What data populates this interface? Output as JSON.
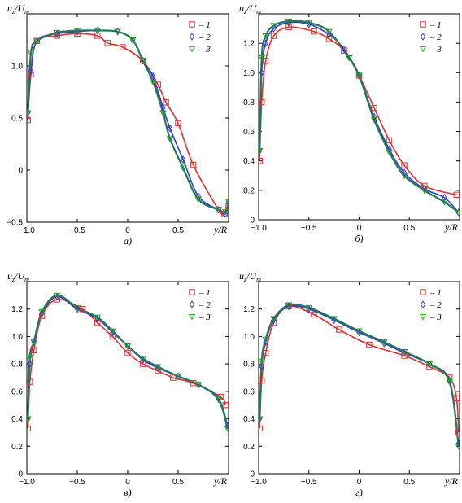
{
  "colors": {
    "series1": "#e03030",
    "series2": "#3a3ad0",
    "series3": "#22a022",
    "fit3": "#1f7a5c"
  },
  "chart_data": [
    {
      "type": "line",
      "subtitle": "а)",
      "ylabel": "u_z/U_m",
      "xlabel": "y/R",
      "xlim": [
        -1.0,
        1.0
      ],
      "ylim": [
        -0.5,
        1.5
      ],
      "xticks": [
        "-1.0",
        "-0.5",
        "0",
        "0.5"
      ],
      "yticks": [
        "-0.5",
        "0",
        "0.5",
        "1.0"
      ],
      "legend": [
        "– 1",
        "– 2",
        "– 3"
      ],
      "legend_position": "top-right",
      "series": [
        {
          "name": "1",
          "marker": "square",
          "x": [
            -0.99,
            -0.96,
            -0.9,
            -0.7,
            -0.5,
            -0.3,
            -0.2,
            -0.05,
            0.15,
            0.3,
            0.38,
            0.5,
            0.65,
            0.9,
            0.96,
            1.0
          ],
          "y": [
            0.48,
            0.92,
            1.24,
            1.29,
            1.31,
            1.29,
            1.22,
            1.18,
            1.05,
            0.82,
            0.65,
            0.45,
            0.05,
            -0.38,
            -0.42,
            -0.35
          ]
        },
        {
          "name": "2",
          "marker": "diamond",
          "x": [
            -0.99,
            -0.96,
            -0.9,
            -0.7,
            -0.5,
            -0.3,
            -0.1,
            0.05,
            0.15,
            0.25,
            0.35,
            0.42,
            0.55,
            0.7,
            0.9,
            0.97,
            1.0
          ],
          "y": [
            0.55,
            0.95,
            1.24,
            1.31,
            1.33,
            1.34,
            1.33,
            1.25,
            1.05,
            0.9,
            0.6,
            0.4,
            0.1,
            -0.25,
            -0.38,
            -0.42,
            -0.3
          ]
        },
        {
          "name": "3",
          "marker": "triangle",
          "x": [
            -0.99,
            -0.96,
            -0.9,
            -0.7,
            -0.5,
            -0.3,
            -0.1,
            0.05,
            0.15,
            0.25,
            0.35,
            0.42,
            0.55,
            0.7,
            0.9,
            0.97,
            1.0
          ],
          "y": [
            0.55,
            1.12,
            1.24,
            1.32,
            1.34,
            1.34,
            1.33,
            1.25,
            1.05,
            0.85,
            0.55,
            0.3,
            0.02,
            -0.28,
            -0.38,
            -0.4,
            -0.3
          ]
        }
      ]
    },
    {
      "type": "line",
      "subtitle": "б)",
      "ylabel": "u_z/U_m",
      "xlabel": "y/R",
      "xlim": [
        -1.0,
        1.0
      ],
      "ylim": [
        0.0,
        1.4
      ],
      "xticks": [
        "-1.0",
        "-0.5",
        "0",
        "0.5"
      ],
      "yticks": [
        "0",
        "0.2",
        "0.4",
        "0.6",
        "0.8",
        "1.0",
        "1.2"
      ],
      "legend": [
        "– 1",
        "– 2",
        "– 3"
      ],
      "legend_position": "top-right",
      "series": [
        {
          "name": "1",
          "marker": "square",
          "x": [
            -0.99,
            -0.97,
            -0.93,
            -0.85,
            -0.7,
            -0.45,
            -0.3,
            -0.15,
            0.0,
            0.15,
            0.3,
            0.45,
            0.65,
            0.97
          ],
          "y": [
            0.4,
            0.8,
            1.08,
            1.25,
            1.31,
            1.28,
            1.23,
            1.15,
            0.98,
            0.76,
            0.54,
            0.37,
            0.23,
            0.17
          ]
        },
        {
          "name": "2",
          "marker": "diamond",
          "x": [
            -0.99,
            -0.97,
            -0.93,
            -0.85,
            -0.7,
            -0.5,
            -0.3,
            -0.15,
            0.0,
            0.15,
            0.3,
            0.45,
            0.65,
            0.85,
            0.99
          ],
          "y": [
            0.47,
            1.0,
            1.2,
            1.3,
            1.34,
            1.33,
            1.26,
            1.16,
            0.98,
            0.7,
            0.48,
            0.32,
            0.21,
            0.15,
            0.05
          ]
        },
        {
          "name": "3",
          "marker": "triangle",
          "x": [
            -0.99,
            -0.97,
            -0.93,
            -0.85,
            -0.7,
            -0.5,
            -0.3,
            -0.1,
            0.0,
            0.15,
            0.3,
            0.45,
            0.65,
            0.85,
            0.99
          ],
          "y": [
            0.47,
            1.1,
            1.25,
            1.32,
            1.35,
            1.34,
            1.28,
            1.1,
            0.98,
            0.68,
            0.46,
            0.3,
            0.2,
            0.12,
            0.05
          ]
        }
      ]
    },
    {
      "type": "line",
      "subtitle": "в)",
      "ylabel": "u_z/U_m",
      "xlabel": "y/R",
      "xlim": [
        -1.0,
        1.0
      ],
      "ylim": [
        0.0,
        1.4
      ],
      "xticks": [
        "-1.0",
        "-0.5",
        "0",
        "0.5"
      ],
      "yticks": [
        "0",
        "0.2",
        "0.4",
        "0.6",
        "0.8",
        "1.0",
        "1.2"
      ],
      "legend": [
        "– 1",
        "– 2",
        "– 3"
      ],
      "legend_position": "top-right",
      "series": [
        {
          "name": "1",
          "marker": "square",
          "x": [
            -0.99,
            -0.97,
            -0.93,
            -0.85,
            -0.7,
            -0.45,
            -0.3,
            -0.15,
            0.0,
            0.15,
            0.3,
            0.45,
            0.65,
            0.92,
            0.97
          ],
          "y": [
            0.33,
            0.67,
            0.9,
            1.15,
            1.27,
            1.2,
            1.1,
            1.0,
            0.88,
            0.8,
            0.75,
            0.7,
            0.66,
            0.56,
            0.5
          ]
        },
        {
          "name": "2",
          "marker": "diamond",
          "x": [
            -0.99,
            -0.97,
            -0.93,
            -0.85,
            -0.7,
            -0.5,
            -0.3,
            -0.15,
            0.0,
            0.15,
            0.3,
            0.5,
            0.7,
            0.9,
            0.99
          ],
          "y": [
            0.4,
            0.8,
            0.96,
            1.17,
            1.29,
            1.2,
            1.13,
            1.03,
            0.93,
            0.83,
            0.77,
            0.71,
            0.65,
            0.55,
            0.35
          ]
        },
        {
          "name": "3",
          "marker": "triangle",
          "x": [
            -0.99,
            -0.97,
            -0.93,
            -0.85,
            -0.7,
            -0.5,
            -0.3,
            -0.15,
            0.0,
            0.15,
            0.3,
            0.5,
            0.7,
            0.9,
            0.99
          ],
          "y": [
            0.4,
            0.85,
            0.96,
            1.18,
            1.3,
            1.21,
            1.14,
            1.04,
            0.93,
            0.84,
            0.78,
            0.71,
            0.65,
            0.54,
            0.33
          ]
        }
      ]
    },
    {
      "type": "line",
      "subtitle": "г)",
      "ylabel": "u_z/U_m",
      "xlabel": "y/R",
      "xlim": [
        -1.0,
        1.0
      ],
      "ylim": [
        0.0,
        1.4
      ],
      "xticks": [
        "-1.0",
        "-0.5",
        "0",
        "0.5"
      ],
      "yticks": [
        "0",
        "0.2",
        "0.4",
        "0.6",
        "0.8",
        "1.0",
        "1.2"
      ],
      "legend": [
        "– 1",
        "– 2",
        "– 3"
      ],
      "legend_position": "top-right",
      "series": [
        {
          "name": "1",
          "marker": "square",
          "x": [
            -0.99,
            -0.97,
            -0.93,
            -0.85,
            -0.7,
            -0.45,
            -0.2,
            0.1,
            0.45,
            0.7,
            0.9,
            0.97,
            0.99
          ],
          "y": [
            0.33,
            0.68,
            0.88,
            1.1,
            1.22,
            1.16,
            1.05,
            0.94,
            0.86,
            0.78,
            0.7,
            0.55,
            0.3
          ]
        },
        {
          "name": "2",
          "marker": "diamond",
          "x": [
            -0.99,
            -0.97,
            -0.93,
            -0.85,
            -0.7,
            -0.5,
            -0.25,
            0.0,
            0.25,
            0.45,
            0.7,
            0.9,
            0.99
          ],
          "y": [
            0.4,
            0.78,
            0.96,
            1.12,
            1.22,
            1.2,
            1.12,
            1.03,
            0.95,
            0.88,
            0.8,
            0.68,
            0.22
          ]
        },
        {
          "name": "3",
          "marker": "triangle",
          "x": [
            -0.99,
            -0.97,
            -0.93,
            -0.85,
            -0.7,
            -0.5,
            -0.25,
            0.0,
            0.25,
            0.45,
            0.7,
            0.9,
            0.99
          ],
          "y": [
            0.4,
            0.82,
            0.98,
            1.13,
            1.23,
            1.21,
            1.13,
            1.04,
            0.96,
            0.89,
            0.8,
            0.67,
            0.2
          ]
        }
      ]
    }
  ]
}
